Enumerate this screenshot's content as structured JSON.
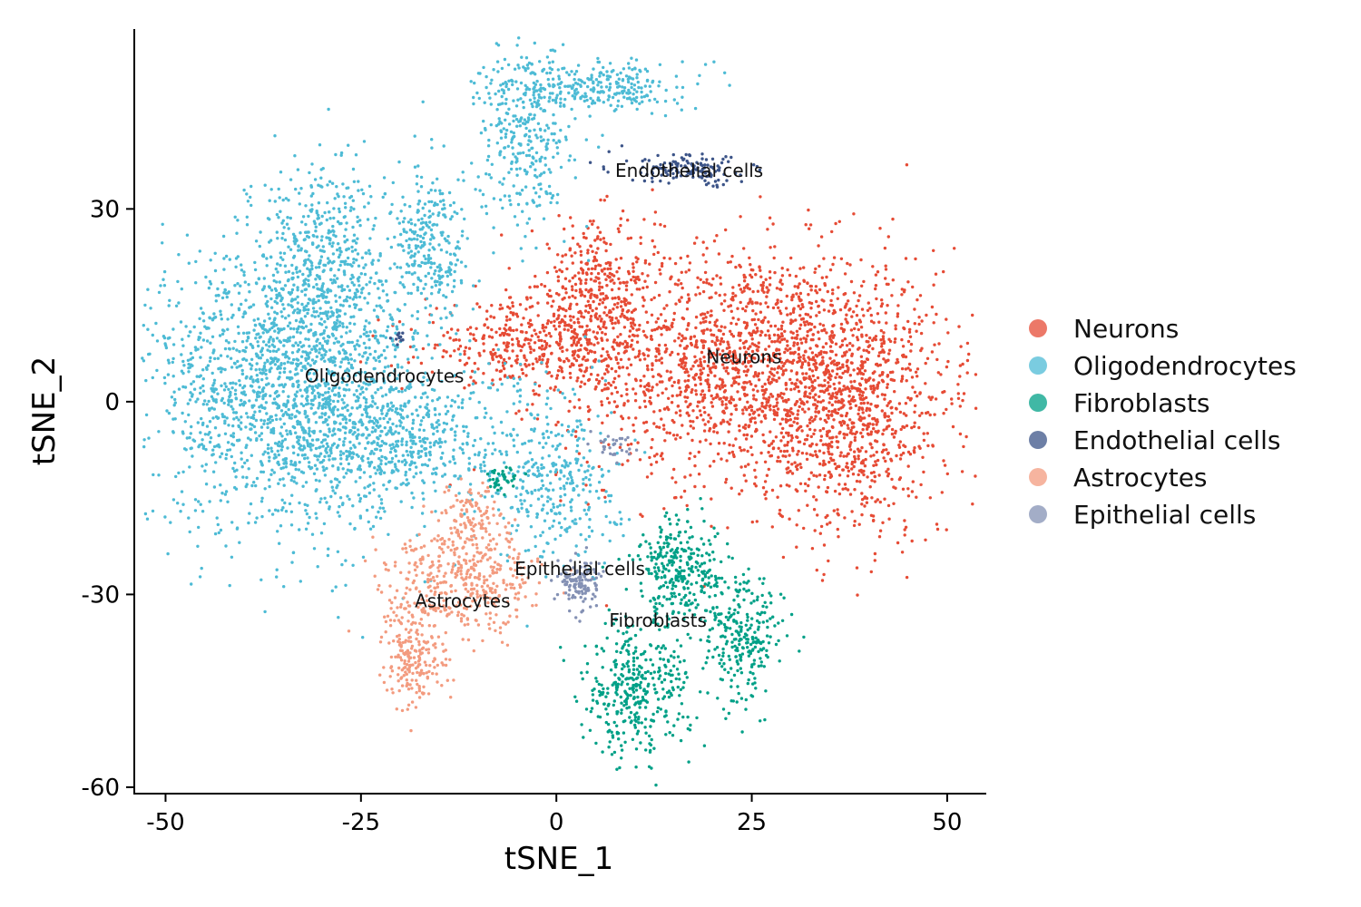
{
  "chart_data": {
    "type": "scatter",
    "xlabel": "tSNE_1",
    "ylabel": "tSNE_2",
    "xlim": [
      -54,
      55
    ],
    "ylim": [
      -61,
      58
    ],
    "xticks": [
      -50,
      -25,
      0,
      25,
      50
    ],
    "xtick_labels": [
      "-50",
      "-25",
      "0",
      "25",
      "50"
    ],
    "yticks": [
      -60,
      -30,
      0,
      30
    ],
    "ytick_labels": [
      "-60",
      "-30",
      "0",
      "30"
    ],
    "grid": false,
    "legend_position": "right",
    "series": [
      {
        "name": "Neurons",
        "color": "#E64B35",
        "label": "Neurons",
        "label_at": [
          24,
          6
        ],
        "regions": [
          {
            "cx": 25,
            "cy": 6,
            "sx": 12,
            "sy": 9,
            "n": 1900
          },
          {
            "cx": 38,
            "cy": -4,
            "sx": 6,
            "sy": 9,
            "n": 650
          },
          {
            "cx": 5,
            "cy": 16,
            "sx": 4,
            "sy": 6,
            "n": 380
          },
          {
            "cx": -5,
            "cy": 9,
            "sx": 6,
            "sy": 3,
            "n": 320
          }
        ]
      },
      {
        "name": "Oligodendrocytes",
        "color": "#4DBBD5",
        "label": "Oligodendrocytes",
        "label_at": [
          -22,
          3
        ],
        "regions": [
          {
            "cx": -34,
            "cy": 2,
            "sx": 9,
            "sy": 11,
            "n": 1800
          },
          {
            "cx": -30,
            "cy": 22,
            "sx": 4.5,
            "sy": 8,
            "n": 500
          },
          {
            "cx": -20,
            "cy": -6,
            "sx": 8,
            "sy": 5,
            "n": 500
          },
          {
            "cx": -16,
            "cy": 24,
            "sx": 2.5,
            "sy": 6,
            "n": 260
          },
          {
            "cx": -4,
            "cy": 42,
            "sx": 3,
            "sy": 7,
            "n": 360
          },
          {
            "cx": 6,
            "cy": 49,
            "sx": 5,
            "sy": 2,
            "n": 260
          },
          {
            "cx": 0,
            "cy": -12,
            "sx": 4,
            "sy": 7,
            "n": 340
          }
        ]
      },
      {
        "name": "Fibroblasts",
        "color": "#00A087",
        "label": "Fibroblasts",
        "label_at": [
          13,
          -35
        ],
        "regions": [
          {
            "cx": 16,
            "cy": -26,
            "sx": 3,
            "sy": 4,
            "n": 300
          },
          {
            "cx": 24,
            "cy": -37,
            "sx": 2.5,
            "sy": 5,
            "n": 260
          },
          {
            "cx": 10,
            "cy": -45,
            "sx": 3.5,
            "sy": 5,
            "n": 380
          },
          {
            "cx": -7,
            "cy": -12,
            "sx": 1,
            "sy": 1,
            "n": 40
          }
        ]
      },
      {
        "name": "Endothelial cells",
        "color": "#3C5488",
        "label": "Endothelial cells",
        "label_at": [
          17,
          35
        ],
        "regions": [
          {
            "cx": 17,
            "cy": 36,
            "sx": 4,
            "sy": 1.2,
            "n": 140
          },
          {
            "cx": -20,
            "cy": 10,
            "sx": 0.6,
            "sy": 0.4,
            "n": 12
          }
        ]
      },
      {
        "name": "Astrocytes",
        "color": "#F39B7F",
        "label": "Astrocytes",
        "label_at": [
          -12,
          -32
        ],
        "regions": [
          {
            "cx": -12,
            "cy": -28,
            "sx": 5,
            "sy": 4,
            "n": 420
          },
          {
            "cx": -18,
            "cy": -40,
            "sx": 2,
            "sy": 4,
            "n": 200
          },
          {
            "cx": -11,
            "cy": -19,
            "sx": 2,
            "sy": 3,
            "n": 120
          }
        ]
      },
      {
        "name": "Epithelial cells",
        "color": "#8491B4",
        "label": "Epithelial cells",
        "label_at": [
          3,
          -27
        ],
        "regions": [
          {
            "cx": 3,
            "cy": -28,
            "sx": 1.3,
            "sy": 2,
            "n": 120
          },
          {
            "cx": 8,
            "cy": -7,
            "sx": 1.5,
            "sy": 1,
            "n": 30
          }
        ]
      }
    ]
  }
}
